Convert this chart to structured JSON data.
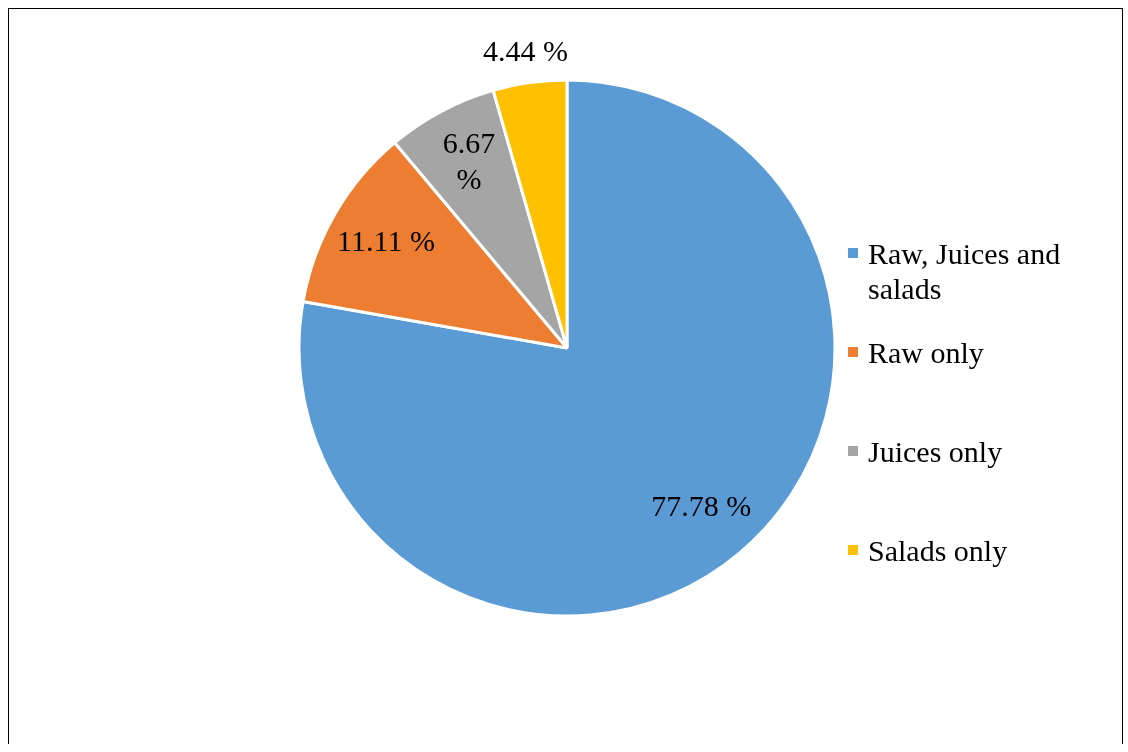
{
  "chart_data": {
    "type": "pie",
    "categories": [
      "Raw, Juices and salads",
      "Raw only",
      "Juices only",
      "Salads only"
    ],
    "values": [
      77.78,
      11.11,
      6.67,
      4.44
    ],
    "colors": [
      "#5b9bd5",
      "#ed7d31",
      "#a5a5a5",
      "#ffc000"
    ],
    "value_labels": [
      "77.78 %",
      "11.11 %",
      "6.67 %",
      "4.44 %"
    ],
    "legend": "right"
  }
}
